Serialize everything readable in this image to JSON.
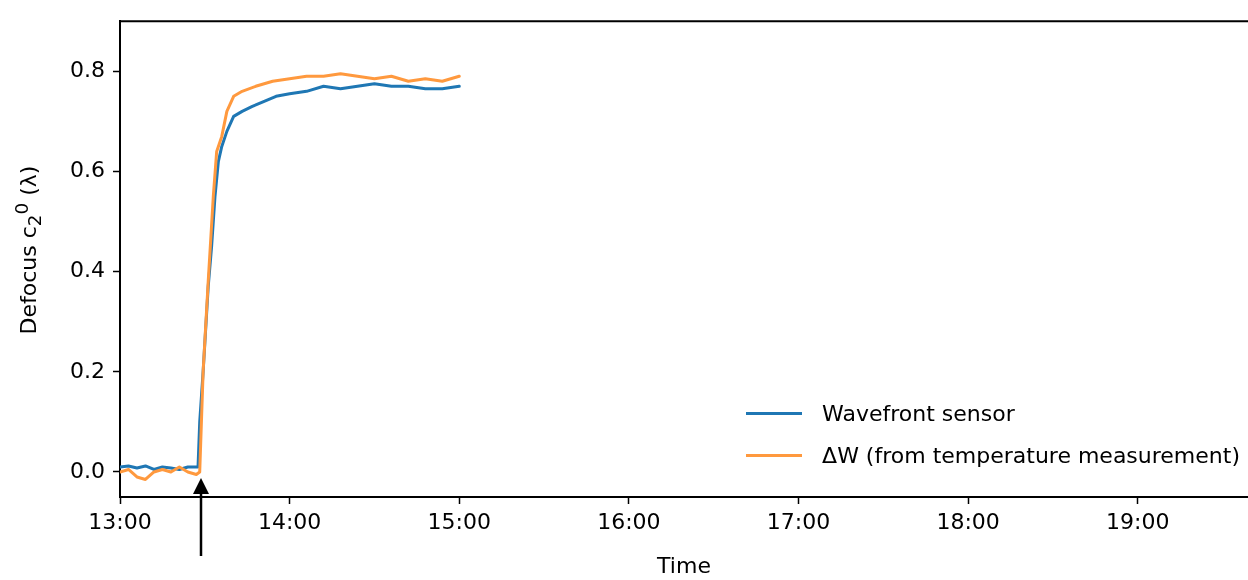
{
  "chart_data": {
    "type": "line",
    "xlabel": "Time",
    "ylabel": "Defocus c$_{2}$$^{0}$ (λ)",
    "xlim": [
      13,
      19.65
    ],
    "ylim": [
      -0.05,
      0.9
    ],
    "xticks": [
      {
        "value": 13,
        "label": "13:00"
      },
      {
        "value": 14,
        "label": "14:00"
      },
      {
        "value": 15,
        "label": "15:00"
      },
      {
        "value": 16,
        "label": "16:00"
      },
      {
        "value": 17,
        "label": "17:00"
      },
      {
        "value": 18,
        "label": "18:00"
      },
      {
        "value": 19,
        "label": "19:00"
      }
    ],
    "yticks": [
      {
        "value": 0,
        "label": "0.0"
      },
      {
        "value": 0.2,
        "label": "0.2"
      },
      {
        "value": 0.4,
        "label": "0.4"
      },
      {
        "value": 0.6,
        "label": "0.6"
      },
      {
        "value": 0.8,
        "label": "0.8"
      }
    ],
    "grid": false,
    "legend": "bottom right",
    "marker": "none",
    "line_style": "solid",
    "series": [
      {
        "name": "Wavefront sensor",
        "color": "#1f77b4",
        "x": [
          13.0,
          13.05,
          13.1,
          13.15,
          13.2,
          13.25,
          13.3,
          13.35,
          13.4,
          13.46,
          13.47,
          13.49,
          13.52,
          13.54,
          13.56,
          13.58,
          13.6,
          13.63,
          13.67,
          13.72,
          13.78,
          13.85,
          13.92,
          14.0,
          14.1,
          14.2,
          14.3,
          14.4,
          14.5,
          14.6,
          14.7,
          14.8,
          14.9,
          15.0
        ],
        "values": [
          0.01,
          0.012,
          0.008,
          0.012,
          0.005,
          0.01,
          0.008,
          0.005,
          0.01,
          0.01,
          0.1,
          0.2,
          0.37,
          0.45,
          0.55,
          0.62,
          0.65,
          0.68,
          0.71,
          0.72,
          0.73,
          0.74,
          0.75,
          0.755,
          0.76,
          0.77,
          0.765,
          0.77,
          0.775,
          0.77,
          0.77,
          0.765,
          0.765,
          0.77
        ]
      },
      {
        "name": "ΔW (from temperature measurement)",
        "color": "#ff993e",
        "x": [
          13.0,
          13.05,
          13.1,
          13.15,
          13.2,
          13.25,
          13.3,
          13.35,
          13.4,
          13.45,
          13.47,
          13.49,
          13.52,
          13.55,
          13.57,
          13.6,
          13.63,
          13.67,
          13.72,
          13.8,
          13.9,
          14.0,
          14.1,
          14.2,
          14.3,
          14.4,
          14.5,
          14.6,
          14.7,
          14.8,
          14.9,
          15.0
        ],
        "values": [
          0.0,
          0.005,
          -0.01,
          -0.015,
          0.0,
          0.005,
          0.0,
          0.01,
          0.0,
          -0.005,
          0.0,
          0.2,
          0.38,
          0.55,
          0.64,
          0.67,
          0.72,
          0.75,
          0.76,
          0.77,
          0.78,
          0.785,
          0.79,
          0.79,
          0.795,
          0.79,
          0.785,
          0.79,
          0.78,
          0.785,
          0.78,
          0.79
        ]
      }
    ]
  }
}
